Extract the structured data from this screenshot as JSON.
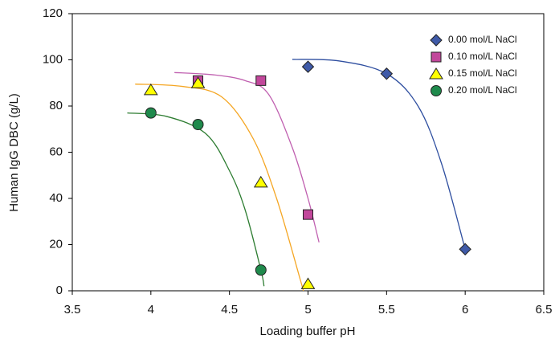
{
  "chart_data": {
    "type": "scatter",
    "x_label": "Loading buffer pH",
    "y_label": "Human IgG DBC (g/L)",
    "xlim": [
      3.5,
      6.5
    ],
    "xticks": [
      3.5,
      4,
      4.5,
      5,
      5.5,
      6,
      6.5
    ],
    "ylim": [
      0,
      120
    ],
    "yticks": [
      0,
      20,
      40,
      60,
      80,
      100,
      120
    ],
    "grid": false,
    "legend": "upper right",
    "series": [
      {
        "name": "0.00 mol/L NaCl",
        "marker": "diamond",
        "color": "#3f5aa8",
        "line_color": "#2f4fa0",
        "x": [
          5.0,
          5.5,
          6.0
        ],
        "values": [
          97,
          94,
          18
        ],
        "curve": {
          "x": [
            4.9,
            5.2,
            5.5,
            5.7,
            5.85,
            6.0
          ],
          "y": [
            100.2,
            99.5,
            94,
            80,
            55,
            18
          ]
        }
      },
      {
        "name": "0.10 mol/L NaCl",
        "marker": "square",
        "color": "#c2479b",
        "line_color": "#c060b0",
        "x": [
          4.3,
          4.7,
          5.0
        ],
        "values": [
          91,
          91,
          33
        ],
        "curve": {
          "x": [
            4.15,
            4.4,
            4.6,
            4.75,
            4.9,
            5.0,
            5.07
          ],
          "y": [
            94.5,
            93.5,
            91,
            85,
            62,
            40,
            21
          ]
        }
      },
      {
        "name": "0.15 mol/L NaCl",
        "marker": "triangle",
        "color": "#ffff00",
        "line_color": "#f5a623",
        "x": [
          4.0,
          4.3,
          4.7,
          5.0
        ],
        "values": [
          87,
          90,
          47,
          3
        ],
        "curve": {
          "x": [
            3.9,
            4.2,
            4.45,
            4.65,
            4.8,
            4.95,
            4.97
          ],
          "y": [
            89.5,
            88.5,
            84,
            66,
            40,
            5,
            0
          ]
        }
      },
      {
        "name": "0.20 mol/L NaCl",
        "marker": "circle",
        "color": "#1f8a4c",
        "line_color": "#2e7d32",
        "x": [
          4.0,
          4.3,
          4.7
        ],
        "values": [
          77,
          72,
          9
        ],
        "curve": {
          "x": [
            3.85,
            4.1,
            4.35,
            4.5,
            4.6,
            4.7,
            4.72
          ],
          "y": [
            77,
            75.5,
            68,
            52,
            35,
            9,
            2
          ]
        }
      }
    ]
  }
}
